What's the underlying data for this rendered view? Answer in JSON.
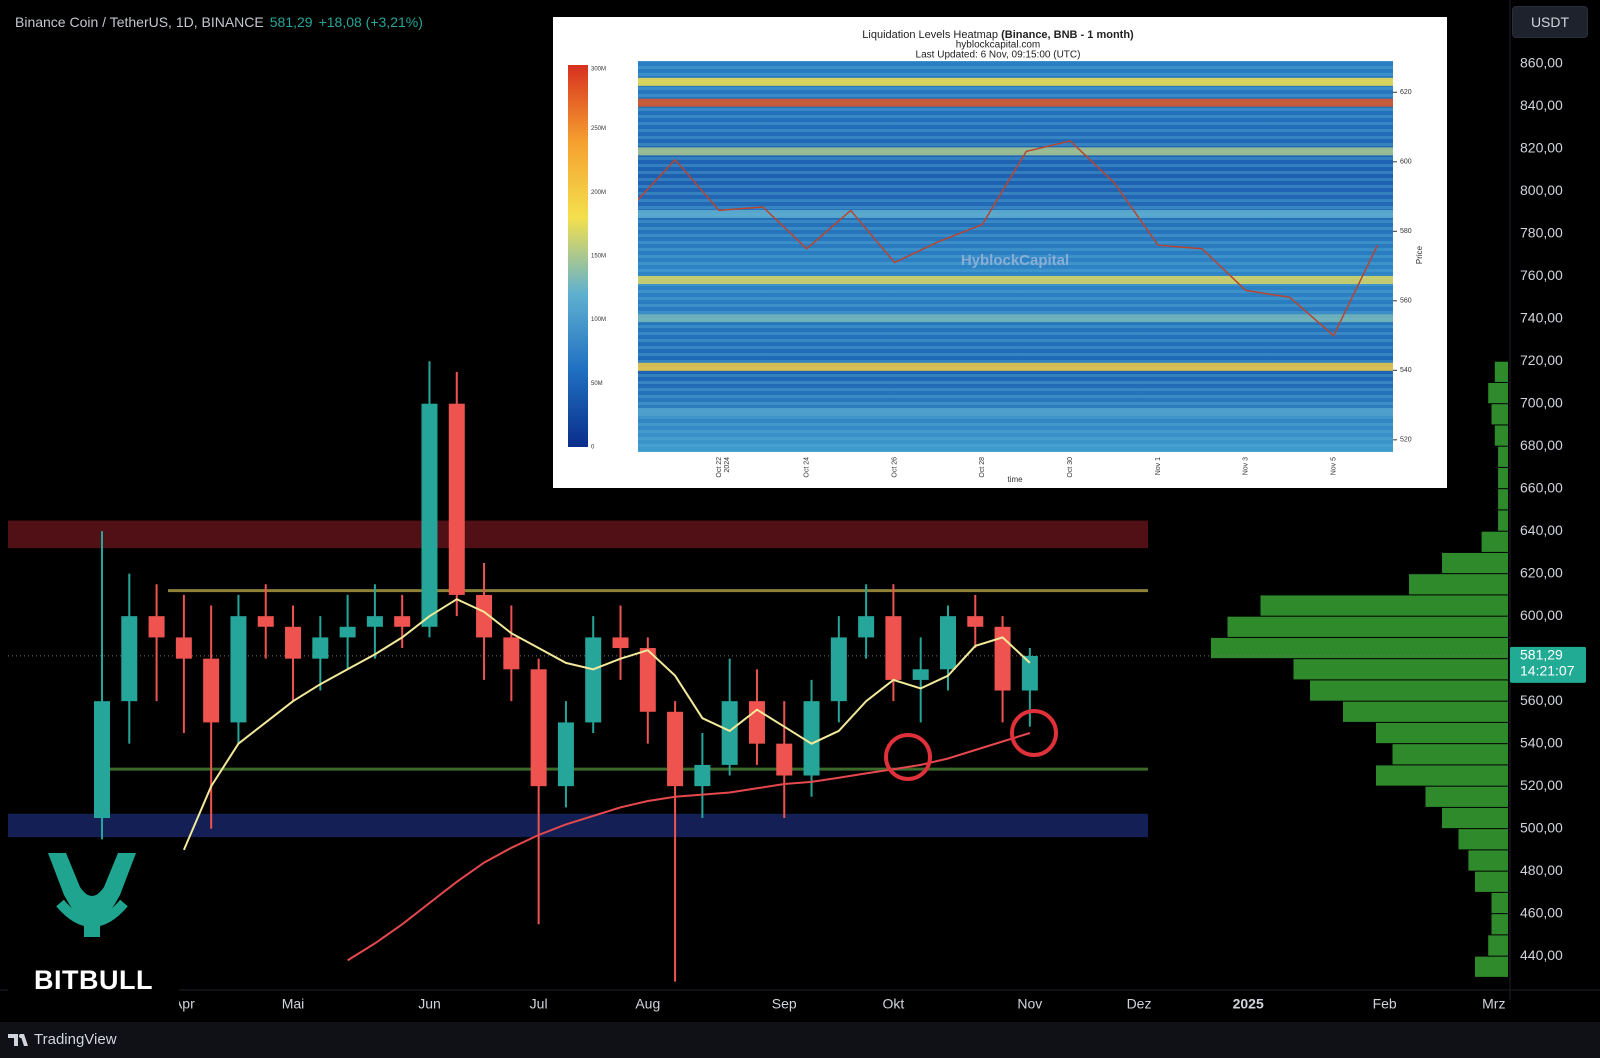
{
  "header": {
    "symbol": "Binance Coin / TetherUS, 1D, BINANCE",
    "price": "581,29",
    "change": "+18,08 (+3,21%)"
  },
  "currency": "USDT",
  "logo": {
    "brand": "BITBULL"
  },
  "footer": {
    "brand": "TradingView"
  },
  "chart_data": [
    {
      "type": "candlestick",
      "categories": [
        null,
        null,
        null,
        "Apr",
        null,
        null,
        null,
        "Mai",
        null,
        null,
        null,
        null,
        "Jun",
        null,
        null,
        null,
        "Jul",
        null,
        null,
        null,
        "Aug",
        null,
        null,
        null,
        null,
        "Sep",
        null,
        null,
        null,
        "Okt",
        null,
        null,
        null,
        null,
        "Nov",
        null,
        null,
        null,
        "Dez",
        null,
        null,
        null,
        "2025",
        null,
        null,
        null,
        null,
        "Feb",
        null,
        null,
        null,
        "Mrz"
      ],
      "open": [
        505,
        560,
        600,
        590,
        580,
        550,
        600,
        595,
        580,
        590,
        595,
        600,
        595,
        700,
        610,
        590,
        575,
        520,
        550,
        590,
        585,
        555,
        520,
        530,
        560,
        540,
        525,
        560,
        590,
        600,
        570,
        575,
        600,
        595,
        565,
        null,
        null,
        null,
        null,
        null,
        null,
        null,
        null,
        null,
        null,
        null,
        null,
        null,
        null,
        null,
        null,
        null
      ],
      "high": [
        640,
        620,
        615,
        610,
        605,
        610,
        615,
        605,
        600,
        610,
        615,
        610,
        720,
        715,
        625,
        605,
        580,
        560,
        600,
        605,
        590,
        560,
        545,
        580,
        575,
        560,
        570,
        600,
        615,
        615,
        590,
        605,
        610,
        600,
        585,
        null,
        null,
        null,
        null,
        null,
        null,
        null,
        null,
        null,
        null,
        null,
        null,
        null,
        null,
        null,
        null,
        null
      ],
      "low": [
        495,
        540,
        560,
        545,
        500,
        540,
        580,
        560,
        565,
        575,
        580,
        585,
        590,
        600,
        570,
        560,
        455,
        510,
        545,
        570,
        540,
        428,
        505,
        525,
        530,
        505,
        515,
        550,
        580,
        560,
        550,
        565,
        585,
        550,
        548,
        null,
        null,
        null,
        null,
        null,
        null,
        null,
        null,
        null,
        null,
        null,
        null,
        null,
        null,
        null,
        null,
        null
      ],
      "close": [
        560,
        600,
        590,
        580,
        550,
        600,
        595,
        580,
        590,
        595,
        600,
        595,
        700,
        610,
        590,
        575,
        520,
        550,
        590,
        585,
        555,
        520,
        530,
        560,
        540,
        525,
        560,
        590,
        600,
        570,
        575,
        600,
        595,
        565,
        581.29,
        null,
        null,
        null,
        null,
        null,
        null,
        null,
        null,
        null,
        null,
        null,
        null,
        null,
        null,
        null,
        null,
        null
      ],
      "up_color": "#26a69a",
      "down_color": "#ef5350",
      "lines": [
        {
          "color": "#f3e99a",
          "values": [
            null,
            null,
            null,
            490,
            520,
            540,
            550,
            560,
            568,
            575,
            582,
            590,
            600,
            608,
            602,
            592,
            585,
            578,
            575,
            580,
            584,
            572,
            552,
            546,
            556,
            548,
            540,
            546,
            560,
            570,
            566,
            572,
            586,
            590,
            578,
            null,
            null,
            null,
            null,
            null,
            null,
            null,
            null,
            null,
            null,
            null,
            null,
            null,
            null,
            null,
            null,
            null
          ]
        },
        {
          "color": "#e5484d",
          "values": [
            null,
            null,
            null,
            null,
            null,
            null,
            null,
            null,
            null,
            438,
            446,
            455,
            465,
            475,
            484,
            491,
            497,
            502,
            506,
            510,
            513,
            515,
            516,
            517,
            519,
            521,
            522,
            524,
            526,
            528,
            530,
            533,
            537,
            541,
            545,
            null,
            null,
            null,
            null,
            null,
            null,
            null,
            null,
            null,
            null,
            null,
            null,
            null,
            null,
            null,
            null,
            null
          ]
        }
      ],
      "zones": [
        {
          "low": 632,
          "high": 645,
          "color": "#5a1217"
        },
        {
          "low": 496,
          "high": 507,
          "color": "#16245e"
        }
      ],
      "levels": [
        {
          "value": 612,
          "color": "#8f8136"
        },
        {
          "value": 528,
          "color": "#3b6a2a"
        }
      ],
      "profile": {
        "color": "#2f8a2c",
        "bins": [
          430,
          440,
          450,
          460,
          470,
          480,
          490,
          500,
          510,
          520,
          530,
          540,
          550,
          560,
          570,
          580,
          590,
          600,
          610,
          620,
          630,
          640,
          650,
          660,
          670,
          680,
          690,
          700,
          710,
          720
        ],
        "values": [
          10,
          6,
          5,
          5,
          10,
          12,
          15,
          20,
          25,
          40,
          35,
          40,
          50,
          60,
          65,
          90,
          85,
          75,
          30,
          20,
          8,
          3,
          3,
          3,
          3,
          4,
          5,
          6,
          4
        ]
      },
      "price_tag": {
        "value": 581.29,
        "label": "581,29",
        "timer": "14:21:07",
        "color": "#22ab94"
      },
      "ylim": [
        425,
        890
      ],
      "yticks": [
        {
          "value": 440,
          "label": "440,00"
        },
        {
          "value": 460,
          "label": "460,00"
        },
        {
          "value": 480,
          "label": "480,00"
        },
        {
          "value": 500,
          "label": "500,00"
        },
        {
          "value": 520,
          "label": "520,00"
        },
        {
          "value": 540,
          "label": "540,00"
        },
        {
          "value": 560,
          "label": "560,00"
        },
        {
          "value": 580,
          "label": "580,00"
        },
        {
          "value": 600,
          "label": "600,00"
        },
        {
          "value": 620,
          "label": "620,00"
        },
        {
          "value": 640,
          "label": "640,00"
        },
        {
          "value": 660,
          "label": "660,00"
        },
        {
          "value": 680,
          "label": "680,00"
        },
        {
          "value": 700,
          "label": "700,00"
        },
        {
          "value": 720,
          "label": "720,00"
        },
        {
          "value": 740,
          "label": "740,00"
        },
        {
          "value": 760,
          "label": "760,00"
        },
        {
          "value": 780,
          "label": "780,00"
        },
        {
          "value": 800,
          "label": "800,00"
        },
        {
          "value": 820,
          "label": "820,00"
        },
        {
          "value": 840,
          "label": "840,00"
        },
        {
          "value": 860,
          "label": "860,00"
        }
      ]
    },
    {
      "type": "heatmap",
      "title": "Liquidation Levels Heatmap",
      "title_bold": "(Binance, BNB - 1 month)",
      "subtitle": "hyblockcapital.com",
      "updated": "Last Updated: 6 Nov, 09:15:00 (UTC)",
      "watermark": "HyblockCapital",
      "xlabel": "time",
      "ylabel": "Price",
      "year_label": "2024",
      "categories": [
        null,
        null,
        "Oct 22",
        null,
        "Oct 24",
        null,
        "Oct 26",
        null,
        "Oct 28",
        null,
        "Oct 30",
        null,
        "Nov 1",
        null,
        "Nov 3",
        null,
        "Nov 5",
        null
      ],
      "values": [
        587,
        600.6,
        586,
        587,
        575,
        586,
        571,
        577,
        582,
        603,
        606,
        594,
        576,
        575,
        563,
        561,
        550,
        576
      ],
      "line_color": "#b8452f",
      "ylim": [
        516.5,
        629
      ],
      "yticks": [
        520,
        540,
        560,
        580,
        600,
        620
      ],
      "bands": [
        {
          "value": 617,
          "level": 280000000
        },
        {
          "value": 623,
          "level": 180000000
        },
        {
          "value": 603,
          "level": 150000000
        },
        {
          "value": 585,
          "level": 120000000
        },
        {
          "value": 566,
          "level": 170000000
        },
        {
          "value": 555,
          "level": 130000000
        },
        {
          "value": 541,
          "level": 200000000
        },
        {
          "value": 528,
          "level": 110000000
        }
      ],
      "colorbar": {
        "lim": [
          0,
          300000000
        ],
        "colors": [
          "#0b2e8a",
          "#1f6fc1",
          "#5fb0d0",
          "#f4e04d",
          "#f5a030",
          "#d7301f"
        ],
        "ticks": [
          0,
          {
            "value": 50000000,
            "label": "50M"
          },
          {
            "value": 100000000,
            "label": "100M"
          },
          {
            "value": 150000000,
            "label": "150M"
          },
          {
            "value": 200000000,
            "label": "200M"
          },
          {
            "value": 250000000,
            "label": "250M"
          },
          {
            "value": 300000000,
            "label": "300M"
          }
        ]
      }
    }
  ]
}
